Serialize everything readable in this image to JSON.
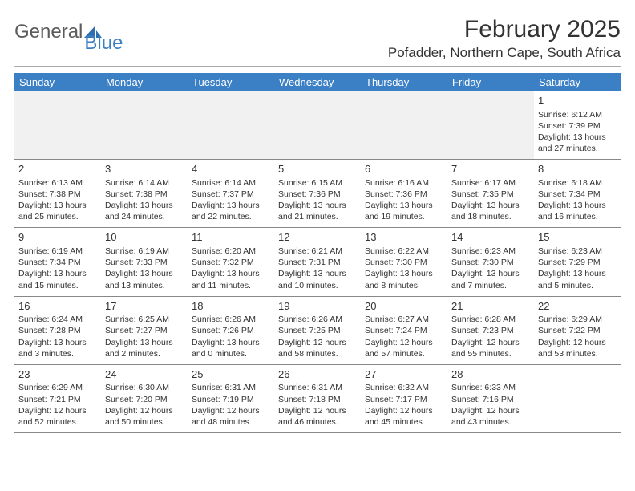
{
  "brand": {
    "general": "General",
    "blue": "Blue"
  },
  "title": "February 2025",
  "location": "Pofadder, Northern Cape, South Africa",
  "colors": {
    "header_bg": "#3b7fc4",
    "text": "#333333",
    "empty_bg": "#f1f1f1",
    "border": "#888888"
  },
  "fonts": {
    "title_size": 30,
    "location_size": 17,
    "header_size": 13,
    "daynum_size": 13,
    "body_size": 10.5
  },
  "day_names": [
    "Sunday",
    "Monday",
    "Tuesday",
    "Wednesday",
    "Thursday",
    "Friday",
    "Saturday"
  ],
  "weeks": [
    [
      null,
      null,
      null,
      null,
      null,
      null,
      {
        "n": "1",
        "sr": "Sunrise: 6:12 AM",
        "ss": "Sunset: 7:39 PM",
        "dl1": "Daylight: 13 hours",
        "dl2": "and 27 minutes."
      }
    ],
    [
      {
        "n": "2",
        "sr": "Sunrise: 6:13 AM",
        "ss": "Sunset: 7:38 PM",
        "dl1": "Daylight: 13 hours",
        "dl2": "and 25 minutes."
      },
      {
        "n": "3",
        "sr": "Sunrise: 6:14 AM",
        "ss": "Sunset: 7:38 PM",
        "dl1": "Daylight: 13 hours",
        "dl2": "and 24 minutes."
      },
      {
        "n": "4",
        "sr": "Sunrise: 6:14 AM",
        "ss": "Sunset: 7:37 PM",
        "dl1": "Daylight: 13 hours",
        "dl2": "and 22 minutes."
      },
      {
        "n": "5",
        "sr": "Sunrise: 6:15 AM",
        "ss": "Sunset: 7:36 PM",
        "dl1": "Daylight: 13 hours",
        "dl2": "and 21 minutes."
      },
      {
        "n": "6",
        "sr": "Sunrise: 6:16 AM",
        "ss": "Sunset: 7:36 PM",
        "dl1": "Daylight: 13 hours",
        "dl2": "and 19 minutes."
      },
      {
        "n": "7",
        "sr": "Sunrise: 6:17 AM",
        "ss": "Sunset: 7:35 PM",
        "dl1": "Daylight: 13 hours",
        "dl2": "and 18 minutes."
      },
      {
        "n": "8",
        "sr": "Sunrise: 6:18 AM",
        "ss": "Sunset: 7:34 PM",
        "dl1": "Daylight: 13 hours",
        "dl2": "and 16 minutes."
      }
    ],
    [
      {
        "n": "9",
        "sr": "Sunrise: 6:19 AM",
        "ss": "Sunset: 7:34 PM",
        "dl1": "Daylight: 13 hours",
        "dl2": "and 15 minutes."
      },
      {
        "n": "10",
        "sr": "Sunrise: 6:19 AM",
        "ss": "Sunset: 7:33 PM",
        "dl1": "Daylight: 13 hours",
        "dl2": "and 13 minutes."
      },
      {
        "n": "11",
        "sr": "Sunrise: 6:20 AM",
        "ss": "Sunset: 7:32 PM",
        "dl1": "Daylight: 13 hours",
        "dl2": "and 11 minutes."
      },
      {
        "n": "12",
        "sr": "Sunrise: 6:21 AM",
        "ss": "Sunset: 7:31 PM",
        "dl1": "Daylight: 13 hours",
        "dl2": "and 10 minutes."
      },
      {
        "n": "13",
        "sr": "Sunrise: 6:22 AM",
        "ss": "Sunset: 7:30 PM",
        "dl1": "Daylight: 13 hours",
        "dl2": "and 8 minutes."
      },
      {
        "n": "14",
        "sr": "Sunrise: 6:23 AM",
        "ss": "Sunset: 7:30 PM",
        "dl1": "Daylight: 13 hours",
        "dl2": "and 7 minutes."
      },
      {
        "n": "15",
        "sr": "Sunrise: 6:23 AM",
        "ss": "Sunset: 7:29 PM",
        "dl1": "Daylight: 13 hours",
        "dl2": "and 5 minutes."
      }
    ],
    [
      {
        "n": "16",
        "sr": "Sunrise: 6:24 AM",
        "ss": "Sunset: 7:28 PM",
        "dl1": "Daylight: 13 hours",
        "dl2": "and 3 minutes."
      },
      {
        "n": "17",
        "sr": "Sunrise: 6:25 AM",
        "ss": "Sunset: 7:27 PM",
        "dl1": "Daylight: 13 hours",
        "dl2": "and 2 minutes."
      },
      {
        "n": "18",
        "sr": "Sunrise: 6:26 AM",
        "ss": "Sunset: 7:26 PM",
        "dl1": "Daylight: 13 hours",
        "dl2": "and 0 minutes."
      },
      {
        "n": "19",
        "sr": "Sunrise: 6:26 AM",
        "ss": "Sunset: 7:25 PM",
        "dl1": "Daylight: 12 hours",
        "dl2": "and 58 minutes."
      },
      {
        "n": "20",
        "sr": "Sunrise: 6:27 AM",
        "ss": "Sunset: 7:24 PM",
        "dl1": "Daylight: 12 hours",
        "dl2": "and 57 minutes."
      },
      {
        "n": "21",
        "sr": "Sunrise: 6:28 AM",
        "ss": "Sunset: 7:23 PM",
        "dl1": "Daylight: 12 hours",
        "dl2": "and 55 minutes."
      },
      {
        "n": "22",
        "sr": "Sunrise: 6:29 AM",
        "ss": "Sunset: 7:22 PM",
        "dl1": "Daylight: 12 hours",
        "dl2": "and 53 minutes."
      }
    ],
    [
      {
        "n": "23",
        "sr": "Sunrise: 6:29 AM",
        "ss": "Sunset: 7:21 PM",
        "dl1": "Daylight: 12 hours",
        "dl2": "and 52 minutes."
      },
      {
        "n": "24",
        "sr": "Sunrise: 6:30 AM",
        "ss": "Sunset: 7:20 PM",
        "dl1": "Daylight: 12 hours",
        "dl2": "and 50 minutes."
      },
      {
        "n": "25",
        "sr": "Sunrise: 6:31 AM",
        "ss": "Sunset: 7:19 PM",
        "dl1": "Daylight: 12 hours",
        "dl2": "and 48 minutes."
      },
      {
        "n": "26",
        "sr": "Sunrise: 6:31 AM",
        "ss": "Sunset: 7:18 PM",
        "dl1": "Daylight: 12 hours",
        "dl2": "and 46 minutes."
      },
      {
        "n": "27",
        "sr": "Sunrise: 6:32 AM",
        "ss": "Sunset: 7:17 PM",
        "dl1": "Daylight: 12 hours",
        "dl2": "and 45 minutes."
      },
      {
        "n": "28",
        "sr": "Sunrise: 6:33 AM",
        "ss": "Sunset: 7:16 PM",
        "dl1": "Daylight: 12 hours",
        "dl2": "and 43 minutes."
      },
      null
    ]
  ]
}
